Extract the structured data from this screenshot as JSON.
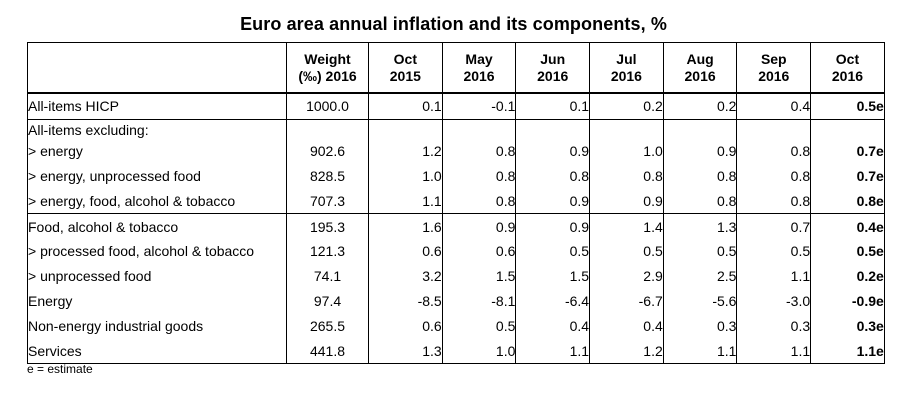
{
  "title": "Euro area annual inflation and its components, %",
  "columns": [
    {
      "line1": "Weight",
      "line2": "(‰) 2016"
    },
    {
      "line1": "Oct",
      "line2": "2015"
    },
    {
      "line1": "May",
      "line2": "2016"
    },
    {
      "line1": "Jun",
      "line2": "2016"
    },
    {
      "line1": "Jul",
      "line2": "2016"
    },
    {
      "line1": "Aug",
      "line2": "2016"
    },
    {
      "line1": "Sep",
      "line2": "2016"
    },
    {
      "line1": "Oct",
      "line2": "2016"
    }
  ],
  "rows": [
    {
      "label": "All-items HICP",
      "values": [
        "1000.0",
        "0.1",
        "-0.1",
        "0.1",
        "0.2",
        "0.2",
        "0.4",
        "0.5e"
      ]
    },
    {
      "label": "All-items excluding:",
      "values": []
    },
    {
      "label": "> energy",
      "values": [
        "902.6",
        "1.2",
        "0.8",
        "0.9",
        "1.0",
        "0.9",
        "0.8",
        "0.7e"
      ]
    },
    {
      "label": "> energy, unprocessed food",
      "values": [
        "828.5",
        "1.0",
        "0.8",
        "0.8",
        "0.8",
        "0.8",
        "0.8",
        "0.7e"
      ]
    },
    {
      "label": "> energy, food, alcohol & tobacco",
      "values": [
        "707.3",
        "1.1",
        "0.8",
        "0.9",
        "0.9",
        "0.8",
        "0.8",
        "0.8e"
      ]
    },
    {
      "label": "Food, alcohol & tobacco",
      "values": [
        "195.3",
        "1.6",
        "0.9",
        "0.9",
        "1.4",
        "1.3",
        "0.7",
        "0.4e"
      ]
    },
    {
      "label": "> processed food, alcohol & tobacco",
      "values": [
        "121.3",
        "0.6",
        "0.6",
        "0.5",
        "0.5",
        "0.5",
        "0.5",
        "0.5e"
      ]
    },
    {
      "label": "> unprocessed food",
      "values": [
        "74.1",
        "3.2",
        "1.5",
        "1.5",
        "2.9",
        "2.5",
        "1.1",
        "0.2e"
      ]
    },
    {
      "label": "Energy",
      "values": [
        "97.4",
        "-8.5",
        "-8.1",
        "-6.4",
        "-6.7",
        "-5.6",
        "-3.0",
        "-0.9e"
      ]
    },
    {
      "label": "Non-energy industrial goods",
      "values": [
        "265.5",
        "0.6",
        "0.5",
        "0.4",
        "0.4",
        "0.3",
        "0.3",
        "0.3e"
      ]
    },
    {
      "label": "Services",
      "values": [
        "441.8",
        "1.3",
        "1.0",
        "1.1",
        "1.2",
        "1.1",
        "1.1",
        "1.1e"
      ]
    }
  ],
  "footnote": "e = estimate"
}
